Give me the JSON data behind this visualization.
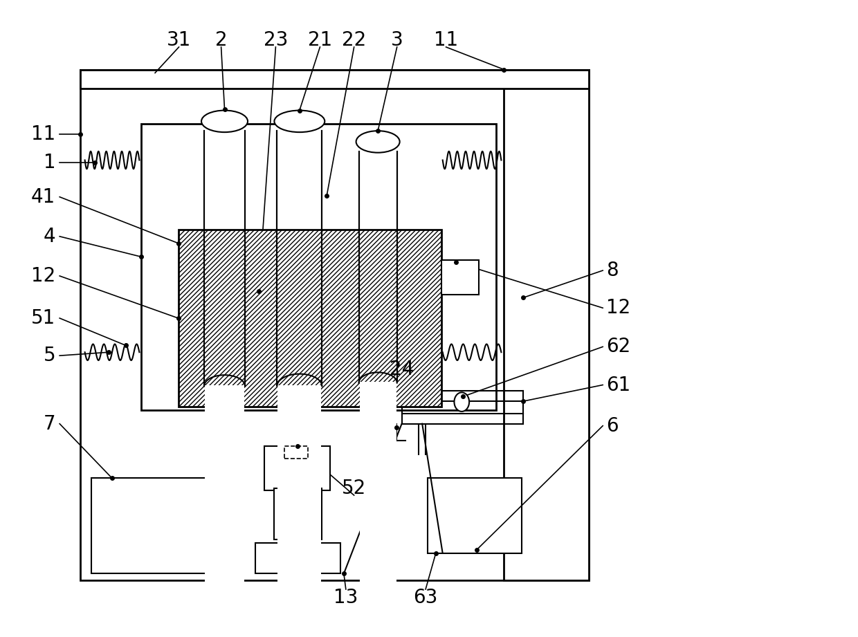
{
  "bg_color": "#ffffff",
  "lw_main": 2.0,
  "lw_thin": 1.5,
  "lw_label": 1.2
}
